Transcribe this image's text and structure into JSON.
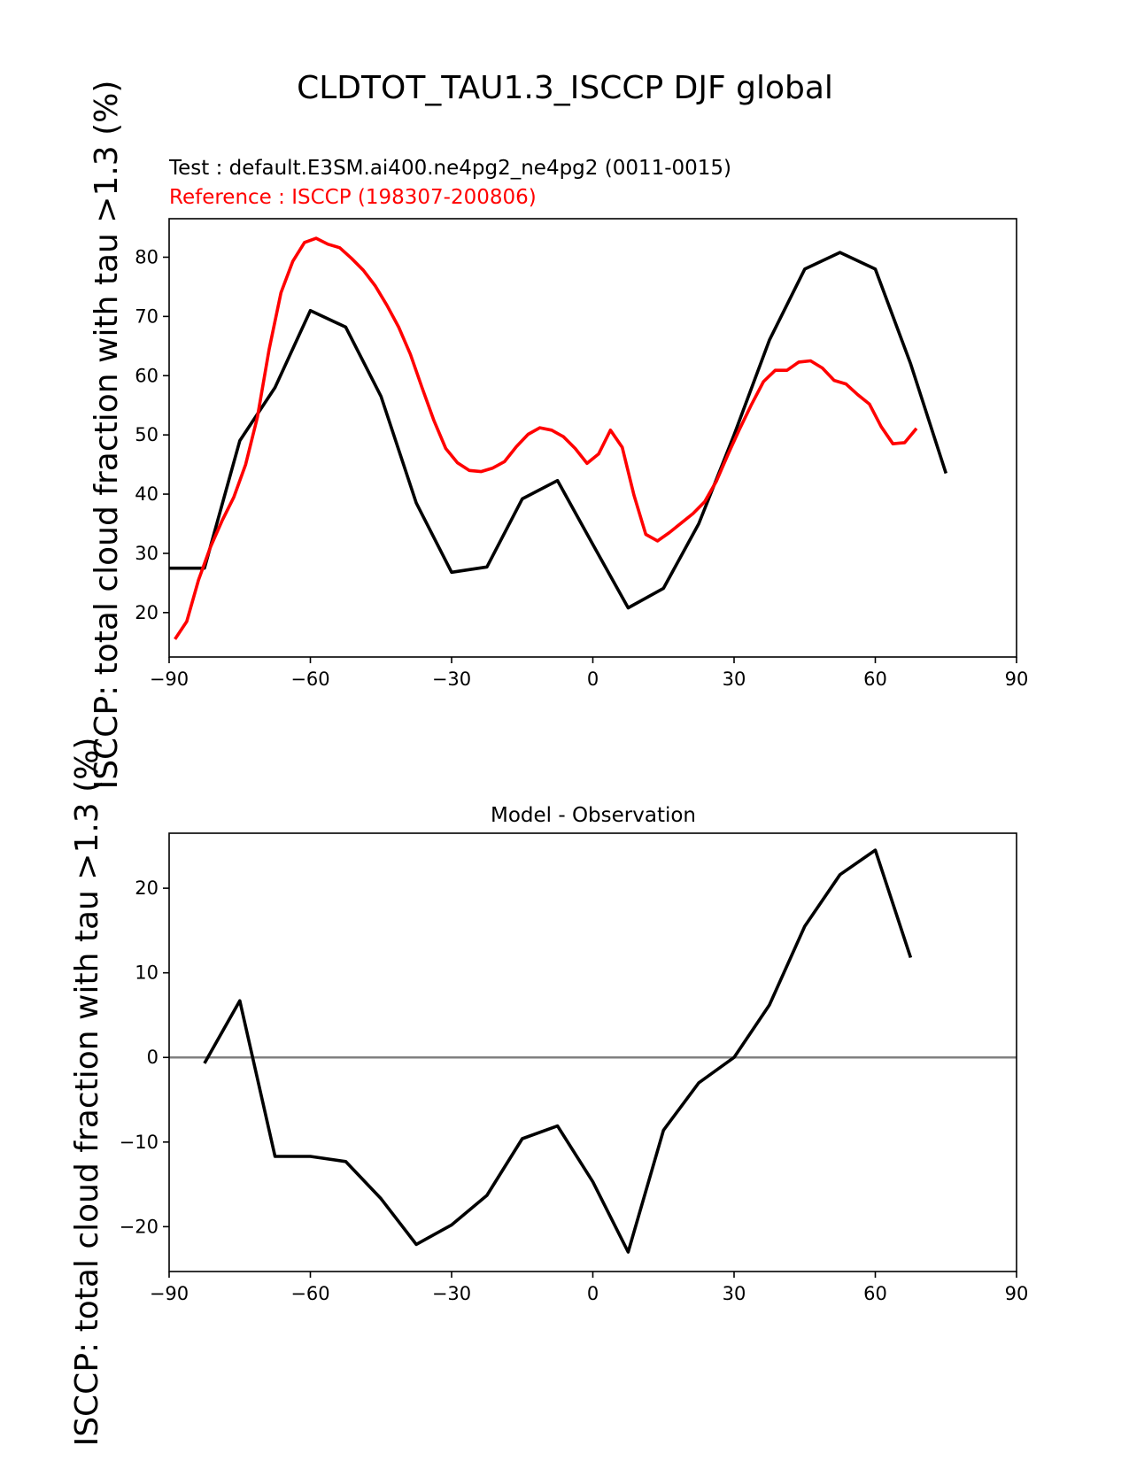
{
  "figure": {
    "title": "CLDTOT_TAU1.3_ISCCP DJF global",
    "test_label": "Test : default.E3SM.ai400.ne4pg2_ne4pg2 (0011-0015)",
    "ref_label": "Reference : ISCCP (198307-200806)",
    "ylabel_top": "ISCCP: total cloud fraction with tau >1.3 (%)",
    "ylabel_bottom": "ISCCP: total cloud fraction with tau >1.3 (%)",
    "diff_title": "Model - Observation",
    "colors": {
      "test": "#000000",
      "reference": "#ff0000",
      "zero_line": "#808080"
    }
  },
  "chart_data": [
    {
      "type": "line",
      "xlim": [
        -90,
        90
      ],
      "ylim": [
        12.5,
        86.5
      ],
      "xticks": [
        -90,
        -60,
        -30,
        0,
        30,
        60,
        90
      ],
      "yticks": [
        20,
        30,
        40,
        50,
        60,
        70,
        80
      ],
      "grid": false,
      "series": [
        {
          "key": "test",
          "x": [
            -90,
            -82.5,
            -75,
            -67.5,
            -60,
            -52.5,
            -45,
            -37.5,
            -30,
            -22.5,
            -15,
            -7.5,
            0,
            7.5,
            15,
            22.5,
            30,
            37.5,
            45,
            52.5,
            60,
            67.5,
            75
          ],
          "y": [
            27.5,
            27.5,
            49,
            58,
            71,
            68.2,
            56.5,
            38.5,
            26.8,
            27.7,
            39.2,
            42.3,
            31.5,
            20.8,
            24.1,
            35,
            50,
            66,
            78,
            80.8,
            78,
            62,
            43.5
          ]
        },
        {
          "key": "reference",
          "x": [
            -88.75,
            -86.25,
            -83.75,
            -81.25,
            -78.75,
            -76.25,
            -73.75,
            -71.25,
            -68.75,
            -66.25,
            -63.75,
            -61.25,
            -58.75,
            -56.25,
            -53.75,
            -51.25,
            -48.75,
            -46.25,
            -43.75,
            -41.25,
            -38.75,
            -36.25,
            -33.75,
            -31.25,
            -28.75,
            -26.25,
            -23.75,
            -21.25,
            -18.75,
            -16.25,
            -13.75,
            -11.25,
            -8.75,
            -6.25,
            -3.75,
            -1.25,
            1.25,
            3.75,
            6.25,
            8.75,
            11.25,
            13.75,
            16.25,
            18.75,
            21.25,
            23.75,
            26.25,
            28.75,
            31.25,
            33.75,
            36.25,
            38.75,
            41.25,
            43.75,
            46.25,
            48.75,
            51.25,
            53.75,
            56.25,
            58.75,
            61.25,
            63.75,
            66.25,
            68.75
          ],
          "y": [
            15.5,
            18.5,
            25.5,
            31,
            35.5,
            39.5,
            45,
            53,
            64.5,
            74,
            79.3,
            82.5,
            83.2,
            82.2,
            81.6,
            79.8,
            77.8,
            75.2,
            71.9,
            68.2,
            63.6,
            57.9,
            52.4,
            47.7,
            45.3,
            44,
            43.8,
            44.4,
            45.5,
            48,
            50.1,
            51.2,
            50.8,
            49.7,
            47.7,
            45.2,
            46.8,
            50.8,
            47.9,
            39.8,
            33.2,
            32.1,
            33.5,
            35.1,
            36.7,
            38.7,
            42.2,
            46.8,
            51.1,
            55.2,
            59,
            60.9,
            60.9,
            62.3,
            62.5,
            61.3,
            59.2,
            58.6,
            56.8,
            55.2,
            51.4,
            48.5,
            48.7,
            51.1
          ]
        }
      ]
    },
    {
      "type": "line",
      "title": "Model - Observation",
      "xlim": [
        -90,
        90
      ],
      "ylim": [
        -25.3,
        26.5
      ],
      "xticks": [
        -90,
        -60,
        -30,
        0,
        30,
        60,
        90
      ],
      "yticks": [
        -20,
        -10,
        0,
        10,
        20
      ],
      "grid": false,
      "zero_line": 0,
      "series": [
        {
          "key": "difference",
          "x": [
            -82.5,
            -75,
            -67.5,
            -60,
            -52.5,
            -45,
            -37.5,
            -30,
            -22.5,
            -15,
            -7.5,
            0,
            7.5,
            15,
            22.5,
            30,
            37.5,
            45,
            52.5,
            60,
            67.5
          ],
          "y": [
            -0.7,
            6.7,
            -11.7,
            -11.7,
            -12.3,
            -16.7,
            -22.1,
            -19.8,
            -16.3,
            -9.6,
            -8.1,
            -14.7,
            -23,
            -8.6,
            -3,
            0,
            6.2,
            15.5,
            21.6,
            24.5,
            11.8
          ]
        }
      ]
    }
  ]
}
